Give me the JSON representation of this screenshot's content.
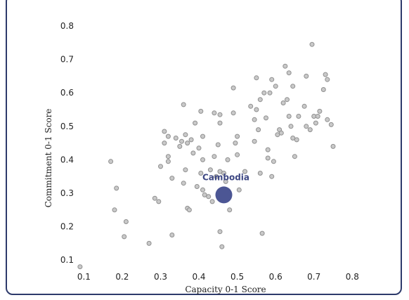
{
  "chart_data": {
    "type": "scatter",
    "xlabel": "Capacity 0-1 Score",
    "ylabel": "Commitment 0-1 Score",
    "xlim": [
      0.07,
      0.86
    ],
    "ylim": [
      0.05,
      0.84
    ],
    "x_ticks": [
      0.1,
      0.2,
      0.3,
      0.4,
      0.5,
      0.6,
      0.7,
      0.8
    ],
    "x_tick_labels": [
      "0.1",
      "0.2",
      "0.3",
      "0.4",
      "0.5",
      "0.6",
      "0.7",
      "0.8"
    ],
    "y_ticks": [
      0.1,
      0.2,
      0.3,
      0.4,
      0.5,
      0.6,
      0.7,
      0.8
    ],
    "y_tick_labels": [
      "0.1",
      "0.2",
      "0.3",
      "0.4",
      "0.5",
      "0.6",
      "0.7",
      "0.8"
    ],
    "grid": false,
    "highlight": {
      "name": "Cambodia",
      "x": 0.465,
      "y": 0.295,
      "color": "#4c5694"
    },
    "point_color": "#c9c9c9",
    "point_edge": "#8f8f8f",
    "points": [
      [
        0.09,
        0.08
      ],
      [
        0.17,
        0.395
      ],
      [
        0.18,
        0.25
      ],
      [
        0.185,
        0.315
      ],
      [
        0.205,
        0.17
      ],
      [
        0.21,
        0.215
      ],
      [
        0.27,
        0.15
      ],
      [
        0.285,
        0.285
      ],
      [
        0.295,
        0.275
      ],
      [
        0.3,
        0.38
      ],
      [
        0.31,
        0.45
      ],
      [
        0.31,
        0.485
      ],
      [
        0.32,
        0.47
      ],
      [
        0.32,
        0.41
      ],
      [
        0.32,
        0.395
      ],
      [
        0.33,
        0.175
      ],
      [
        0.33,
        0.345
      ],
      [
        0.34,
        0.465
      ],
      [
        0.35,
        0.44
      ],
      [
        0.355,
        0.455
      ],
      [
        0.36,
        0.565
      ],
      [
        0.36,
        0.33
      ],
      [
        0.365,
        0.37
      ],
      [
        0.365,
        0.475
      ],
      [
        0.37,
        0.45
      ],
      [
        0.37,
        0.255
      ],
      [
        0.375,
        0.25
      ],
      [
        0.38,
        0.46
      ],
      [
        0.385,
        0.42
      ],
      [
        0.39,
        0.51
      ],
      [
        0.395,
        0.32
      ],
      [
        0.4,
        0.435
      ],
      [
        0.405,
        0.545
      ],
      [
        0.405,
        0.36
      ],
      [
        0.41,
        0.47
      ],
      [
        0.41,
        0.4
      ],
      [
        0.41,
        0.31
      ],
      [
        0.415,
        0.295
      ],
      [
        0.425,
        0.29
      ],
      [
        0.43,
        0.37
      ],
      [
        0.435,
        0.275
      ],
      [
        0.44,
        0.54
      ],
      [
        0.44,
        0.41
      ],
      [
        0.445,
        0.35
      ],
      [
        0.45,
        0.445
      ],
      [
        0.455,
        0.535
      ],
      [
        0.455,
        0.51
      ],
      [
        0.455,
        0.365
      ],
      [
        0.455,
        0.185
      ],
      [
        0.46,
        0.14
      ],
      [
        0.465,
        0.36
      ],
      [
        0.47,
        0.335
      ],
      [
        0.475,
        0.4
      ],
      [
        0.48,
        0.25
      ],
      [
        0.49,
        0.615
      ],
      [
        0.49,
        0.54
      ],
      [
        0.495,
        0.45
      ],
      [
        0.5,
        0.415
      ],
      [
        0.5,
        0.47
      ],
      [
        0.505,
        0.31
      ],
      [
        0.52,
        0.365
      ],
      [
        0.535,
        0.56
      ],
      [
        0.545,
        0.455
      ],
      [
        0.545,
        0.52
      ],
      [
        0.55,
        0.645
      ],
      [
        0.55,
        0.55
      ],
      [
        0.555,
        0.49
      ],
      [
        0.56,
        0.58
      ],
      [
        0.56,
        0.36
      ],
      [
        0.565,
        0.18
      ],
      [
        0.57,
        0.6
      ],
      [
        0.575,
        0.525
      ],
      [
        0.58,
        0.43
      ],
      [
        0.58,
        0.405
      ],
      [
        0.585,
        0.6
      ],
      [
        0.59,
        0.35
      ],
      [
        0.59,
        0.64
      ],
      [
        0.595,
        0.395
      ],
      [
        0.6,
        0.62
      ],
      [
        0.605,
        0.475
      ],
      [
        0.61,
        0.49
      ],
      [
        0.615,
        0.48
      ],
      [
        0.62,
        0.57
      ],
      [
        0.625,
        0.68
      ],
      [
        0.63,
        0.58
      ],
      [
        0.635,
        0.53
      ],
      [
        0.635,
        0.66
      ],
      [
        0.64,
        0.5
      ],
      [
        0.645,
        0.62
      ],
      [
        0.645,
        0.465
      ],
      [
        0.65,
        0.41
      ],
      [
        0.655,
        0.46
      ],
      [
        0.66,
        0.53
      ],
      [
        0.675,
        0.56
      ],
      [
        0.68,
        0.65
      ],
      [
        0.68,
        0.5
      ],
      [
        0.69,
        0.49
      ],
      [
        0.695,
        0.745
      ],
      [
        0.7,
        0.53
      ],
      [
        0.705,
        0.51
      ],
      [
        0.71,
        0.53
      ],
      [
        0.715,
        0.545
      ],
      [
        0.725,
        0.61
      ],
      [
        0.73,
        0.655
      ],
      [
        0.735,
        0.64
      ],
      [
        0.735,
        0.52
      ],
      [
        0.745,
        0.505
      ],
      [
        0.75,
        0.44
      ]
    ]
  }
}
